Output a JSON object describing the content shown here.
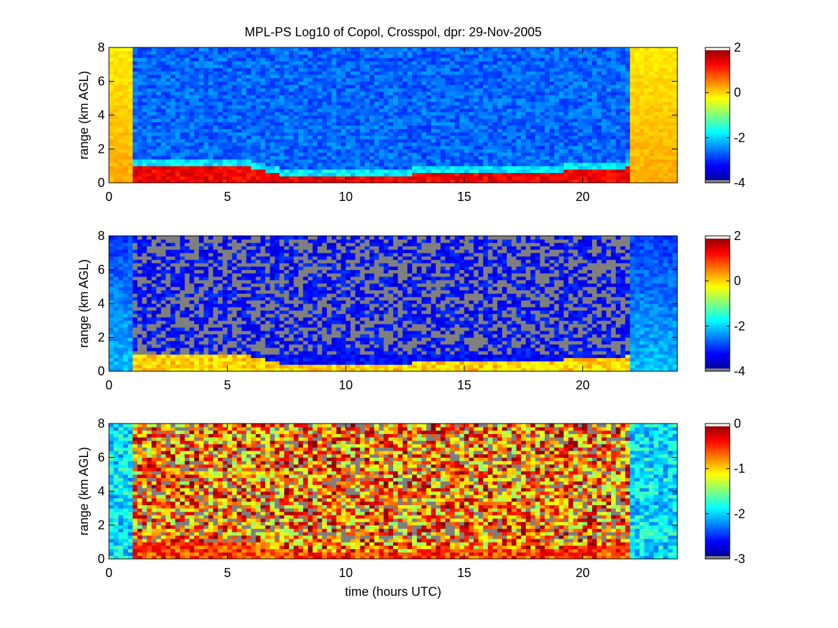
{
  "chart_data": [
    {
      "type": "heatmap",
      "title": "MPL-PS Log10 of Copol, Crosspol, dpr: 29-Nov-2005",
      "xlabel": "",
      "ylabel": "range (km AGL)",
      "xlim": [
        0,
        24
      ],
      "ylim": [
        0,
        8
      ],
      "xticks": [
        0,
        5,
        10,
        15,
        20
      ],
      "yticks": [
        0,
        2,
        4,
        6,
        8
      ],
      "colorbar": {
        "clim": [
          -4,
          2
        ],
        "ticks": [
          2,
          0,
          -2,
          -4
        ]
      },
      "colormap": "jet",
      "missing_color": "#7f7f7f"
    },
    {
      "type": "heatmap",
      "title": "",
      "xlabel": "",
      "ylabel": "range (km AGL)",
      "xlim": [
        0,
        24
      ],
      "ylim": [
        0,
        8
      ],
      "xticks": [
        0,
        5,
        10,
        15,
        20
      ],
      "yticks": [
        0,
        2,
        4,
        6,
        8
      ],
      "colorbar": {
        "clim": [
          -4,
          2
        ],
        "ticks": [
          2,
          0,
          -2,
          -4
        ]
      },
      "colormap": "jet",
      "missing_color": "#7f7f7f"
    },
    {
      "type": "heatmap",
      "title": "",
      "xlabel": "time (hours UTC)",
      "ylabel": "range (km AGL)",
      "xlim": [
        0,
        24
      ],
      "ylim": [
        0,
        8
      ],
      "xticks": [
        0,
        5,
        10,
        15,
        20
      ],
      "yticks": [
        0,
        2,
        4,
        6,
        8
      ],
      "colorbar": {
        "clim": [
          -3,
          0
        ],
        "ticks": [
          0,
          -1,
          -2,
          -3
        ]
      },
      "colormap": "jet",
      "missing_color": "#7f7f7f"
    }
  ]
}
